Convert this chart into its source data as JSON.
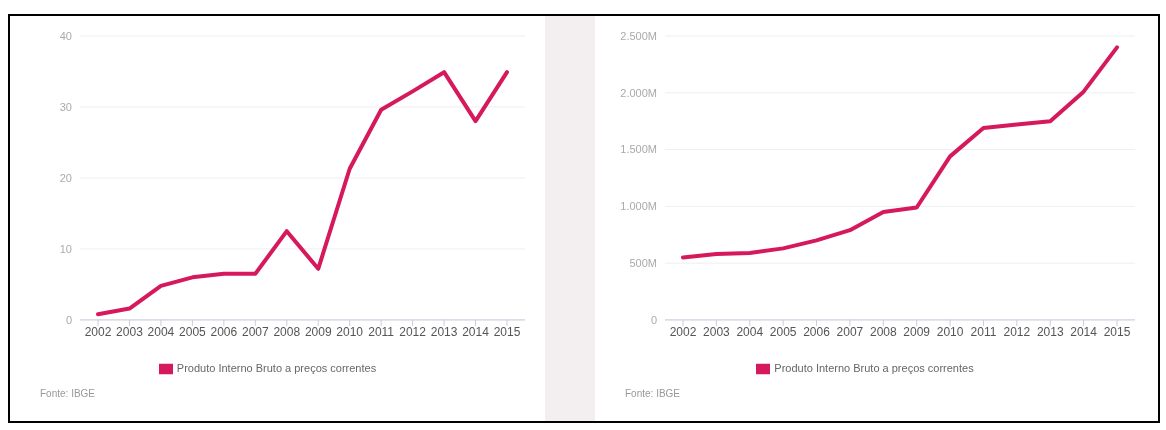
{
  "chart_data": [
    {
      "type": "line",
      "categories": [
        "2002",
        "2003",
        "2004",
        "2005",
        "2006",
        "2007",
        "2008",
        "2009",
        "2010",
        "2011",
        "2012",
        "2013",
        "2014",
        "2015"
      ],
      "series": [
        {
          "name": "Produto Interno Bruto a preços correntes",
          "color": "#d6195c",
          "values": [
            0.8,
            1.6,
            4.8,
            6.0,
            6.5,
            6.5,
            12.5,
            7.2,
            21.3,
            29.6,
            32.2,
            34.9,
            28.0,
            34.9
          ]
        }
      ],
      "ylim": [
        0,
        40
      ],
      "yticks": [
        0,
        10,
        20,
        30,
        40
      ],
      "grid": "y",
      "legend": "bottom",
      "marker": "none",
      "line_style": "solid",
      "annotations": [
        "Fonte: IBGE"
      ]
    },
    {
      "type": "line",
      "categories": [
        "2002",
        "2003",
        "2004",
        "2005",
        "2006",
        "2007",
        "2008",
        "2009",
        "2010",
        "2011",
        "2012",
        "2013",
        "2014",
        "2015"
      ],
      "series": [
        {
          "name": "Produto Interno Bruto a preços correntes",
          "color": "#d6195c",
          "values": [
            550,
            580,
            590,
            630,
            700,
            790,
            950,
            990,
            1440,
            1690,
            1720,
            1750,
            2010,
            2400
          ]
        }
      ],
      "ylim": [
        0,
        2500
      ],
      "yticks": [
        0,
        {
          "value": 500,
          "label": "500M"
        },
        {
          "value": 1000,
          "label": "1.000M"
        },
        {
          "value": 1500,
          "label": "1.500M"
        },
        {
          "value": 2000,
          "label": "2.000M"
        },
        {
          "value": 2500,
          "label": "2.500M"
        }
      ],
      "grid": "y",
      "legend": "bottom",
      "marker": "none",
      "line_style": "solid",
      "annotations": [
        "Fonte: IBGE"
      ]
    }
  ]
}
